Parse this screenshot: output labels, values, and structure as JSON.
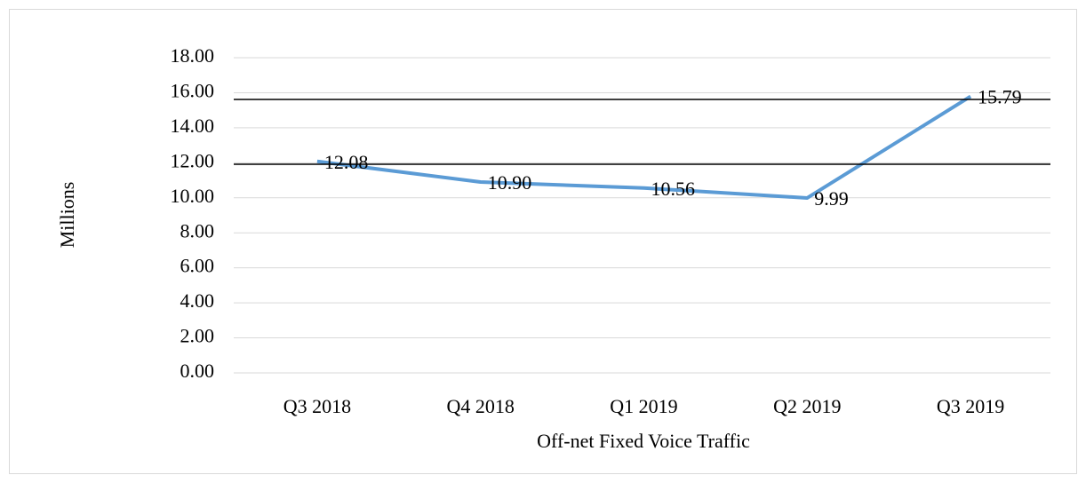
{
  "chart_data": {
    "type": "line",
    "y_axis_label": "Millions",
    "x_axis_label": "Off-net Fixed Voice Traffic",
    "categories": [
      "Q3 2018",
      "Q4 2018",
      "Q1 2019",
      "Q2 2019",
      "Q3 2019"
    ],
    "series": [
      {
        "name": "Off-net Fixed Voice Traffic",
        "color": "#5b9bd5",
        "values": [
          12.08,
          10.9,
          10.56,
          9.99,
          15.79
        ],
        "value_labels": [
          "12.08",
          "10.90",
          "10.56",
          "9.99",
          "15.79"
        ]
      }
    ],
    "ylim": [
      0,
      18
    ],
    "yticks": [
      {
        "value": 0,
        "label": "0.00"
      },
      {
        "value": 2,
        "label": "2.00"
      },
      {
        "value": 4,
        "label": "4.00"
      },
      {
        "value": 6,
        "label": "6.00"
      },
      {
        "value": 8,
        "label": "8.00"
      },
      {
        "value": 10,
        "label": "10.00"
      },
      {
        "value": 12,
        "label": "12.00"
      },
      {
        "value": 14,
        "label": "14.00"
      },
      {
        "value": 16,
        "label": "16.00"
      },
      {
        "value": 18,
        "label": "18.00"
      }
    ],
    "grid": true
  }
}
